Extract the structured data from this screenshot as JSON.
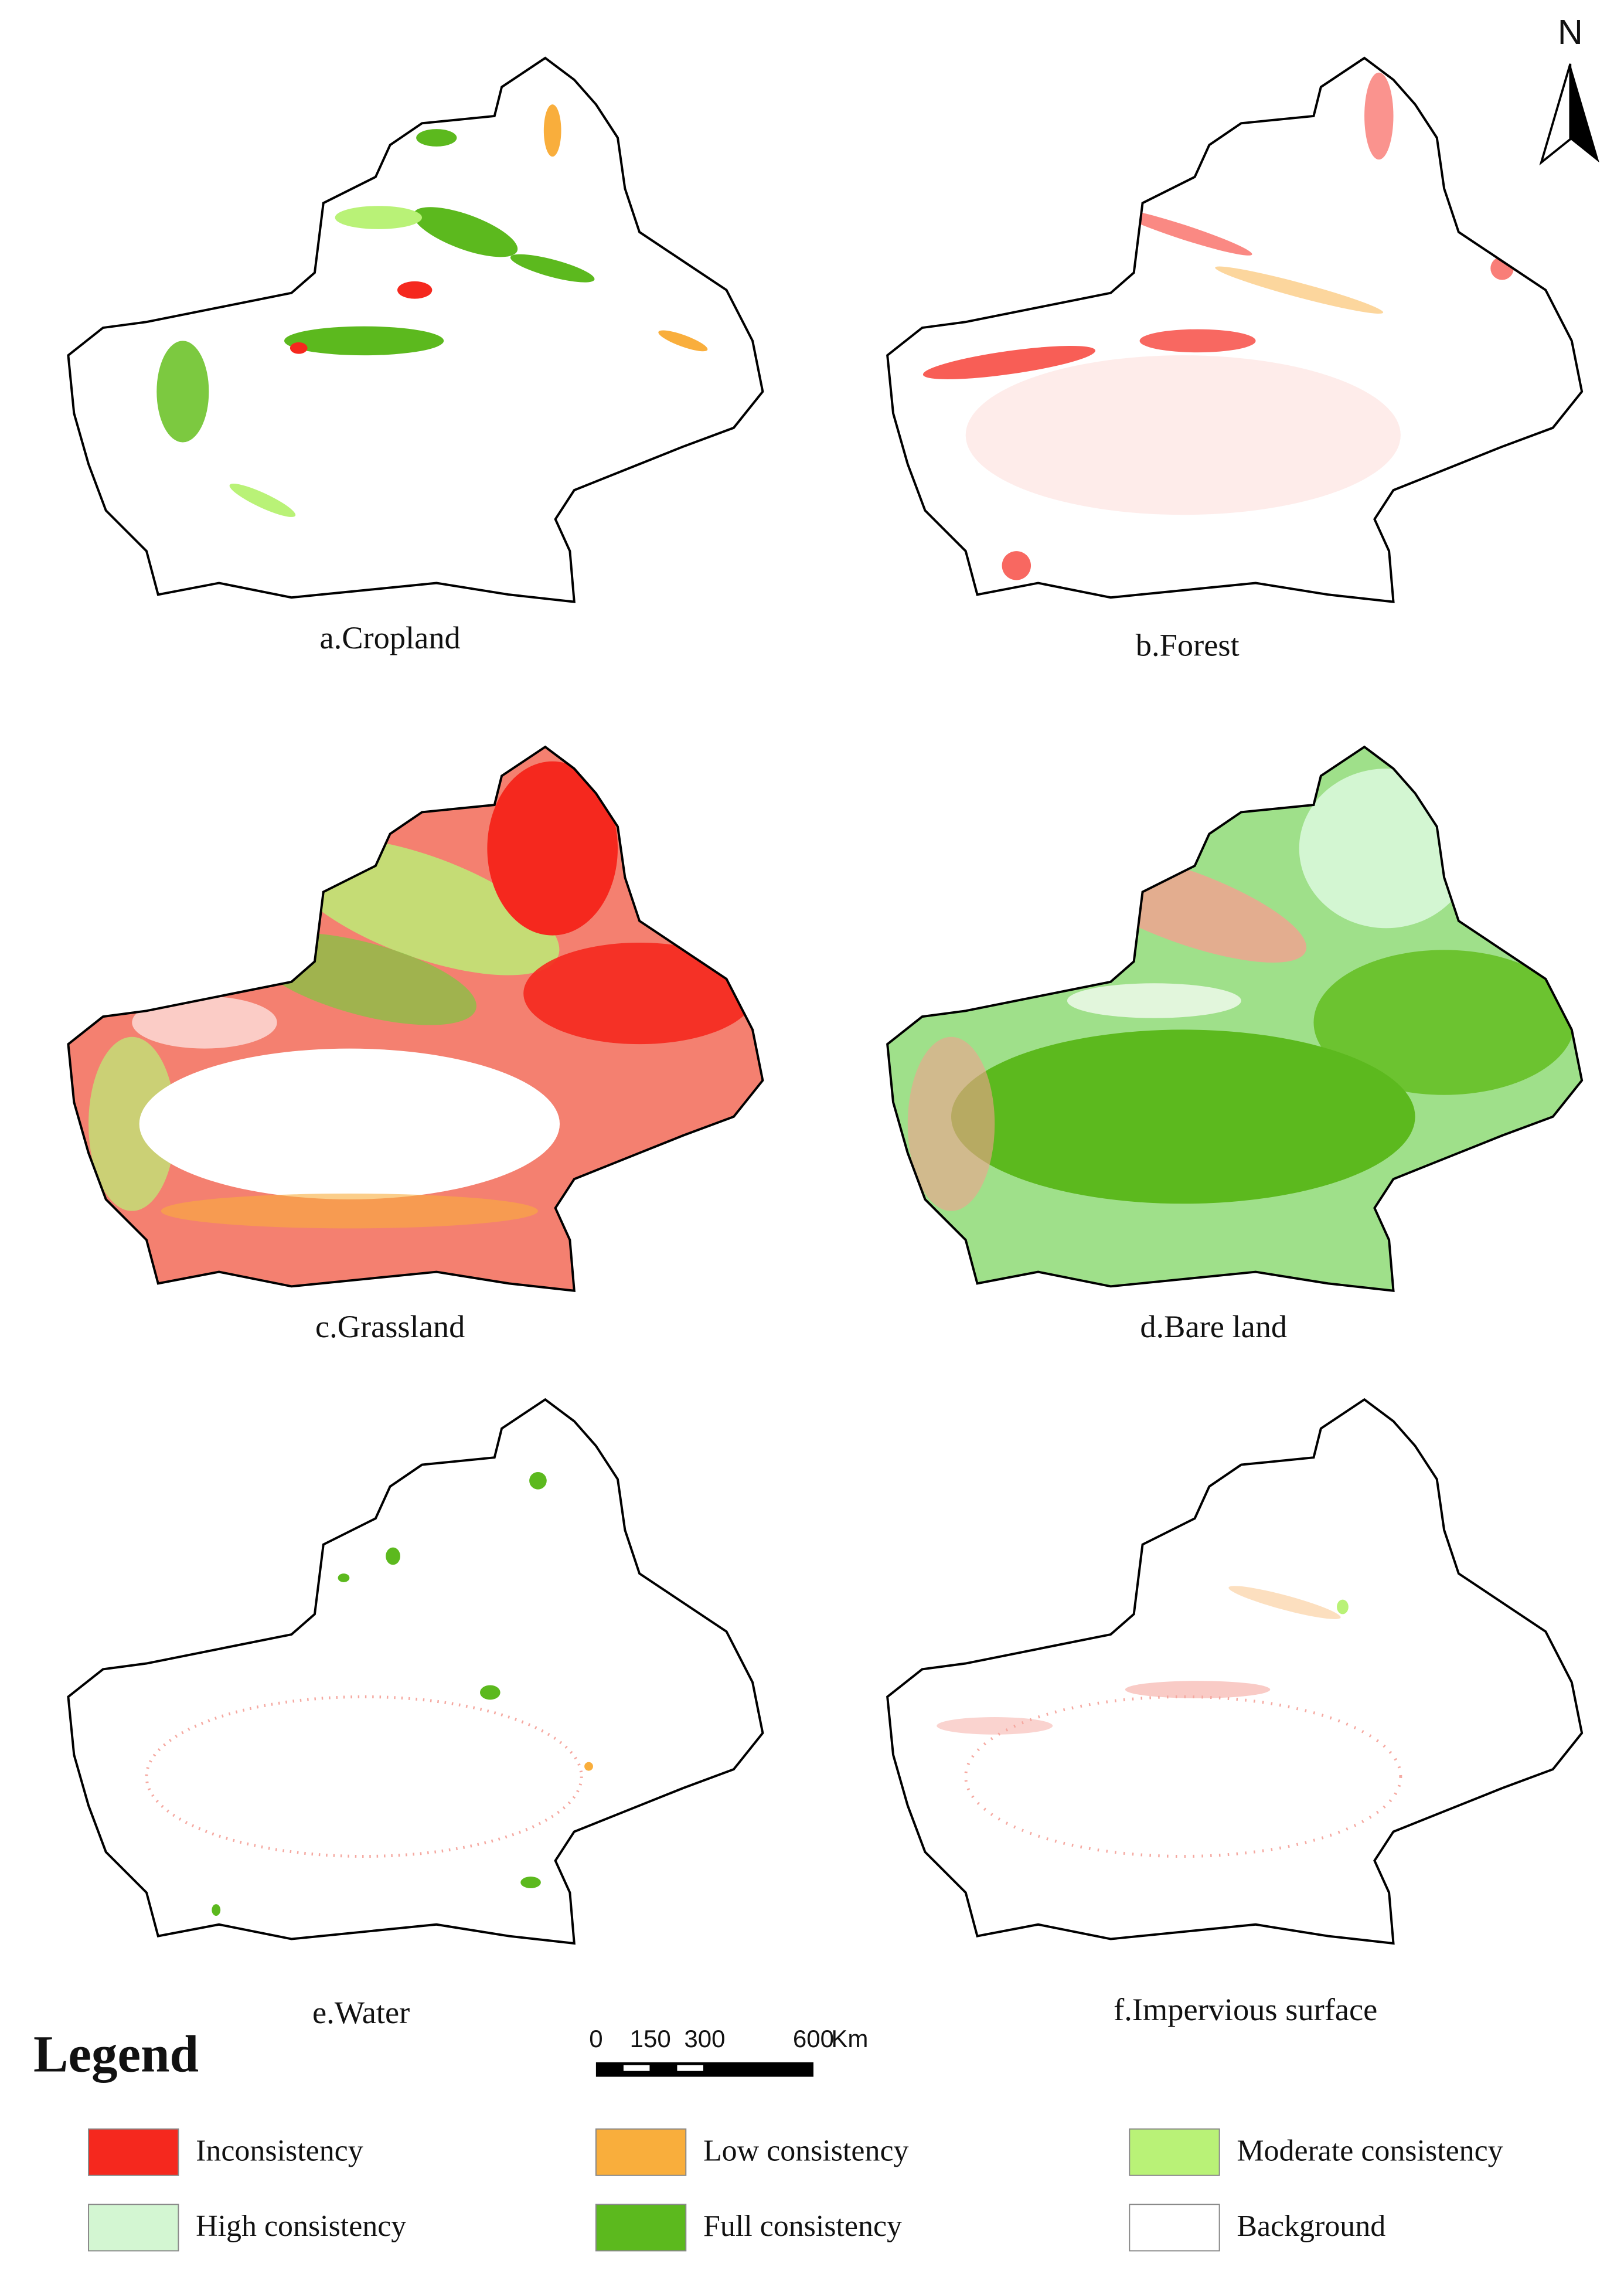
{
  "panels": [
    {
      "label": "a.Cropland"
    },
    {
      "label": "b.Forest"
    },
    {
      "label": "c.Grassland"
    },
    {
      "label": "d.Bare land"
    },
    {
      "label": "e.Water"
    },
    {
      "label": "f.Impervious surface"
    }
  ],
  "north_arrow": {
    "label": "N"
  },
  "scale_bar": {
    "ticks": [
      0,
      150,
      300,
      600
    ],
    "unit": "Km"
  },
  "legend": {
    "title": "Legend",
    "items": [
      {
        "label": "Inconsistency",
        "color": "#f5281e"
      },
      {
        "label": "Low consistency",
        "color": "#f9ae3c"
      },
      {
        "label": "Moderate consistency",
        "color": "#b9f277"
      },
      {
        "label": "High consistency",
        "color": "#d3f6d2"
      },
      {
        "label": "Full consistency",
        "color": "#5cb91e"
      },
      {
        "label": "Background",
        "color": "#ffffff"
      }
    ]
  }
}
